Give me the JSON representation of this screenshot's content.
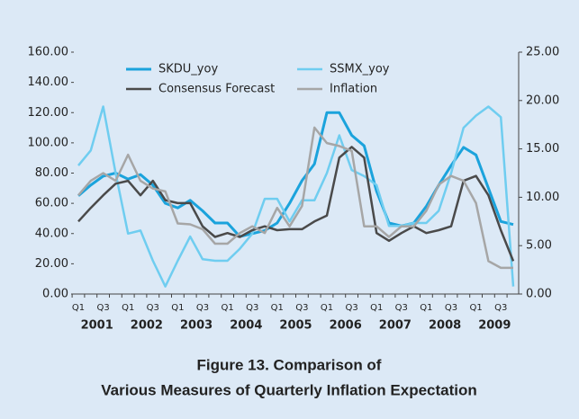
{
  "chart_data": {
    "type": "line",
    "title": [
      "Figure 13. Comparison of",
      "Various Measures of Quarterly Inflation Expectation"
    ],
    "categories": [
      "Q1",
      null,
      "Q3",
      null,
      "Q1",
      null,
      "Q3",
      null,
      "Q1",
      null,
      "Q3",
      null,
      "Q1",
      null,
      "Q3",
      null,
      "Q1",
      null,
      "Q3",
      null,
      "Q1",
      null,
      "Q3",
      null,
      "Q1",
      null,
      "Q3",
      null,
      "Q1",
      null,
      "Q3",
      null,
      "Q1",
      null,
      "Q3",
      null
    ],
    "years": [
      "2001",
      "2002",
      "2003",
      "2004",
      "2005",
      "2006",
      "2007",
      "2008",
      "2009"
    ],
    "ylim": [
      0,
      160
    ],
    "yticks": [
      {
        "value": 0,
        "label": "0.00"
      },
      {
        "value": 20,
        "label": "20.00"
      },
      {
        "value": 40,
        "label": "40.00"
      },
      {
        "value": 60,
        "label": "60.00"
      },
      {
        "value": 80,
        "label": "80.00"
      },
      {
        "value": 100,
        "label": "100.00"
      },
      {
        "value": 120,
        "label": "120.00"
      },
      {
        "value": 140,
        "label": "140.00"
      },
      {
        "value": 160,
        "label": "160.00"
      }
    ],
    "y2lim": [
      0,
      25
    ],
    "y2ticks": [
      {
        "value": 0,
        "label": "0.00"
      },
      {
        "value": 5,
        "label": "5.00"
      },
      {
        "value": 10,
        "label": "10.00"
      },
      {
        "value": 15,
        "label": "15.00"
      },
      {
        "value": 20,
        "label": "20.00"
      },
      {
        "value": 25,
        "label": "25.00"
      }
    ],
    "series": [
      {
        "name": "SKDU_yoy",
        "color": "#1ba3dc",
        "width": 3,
        "values": [
          65,
          72,
          78,
          80,
          76,
          79,
          72,
          60,
          57,
          62,
          55,
          47,
          47,
          38,
          40,
          42,
          47,
          60,
          75,
          86,
          120,
          120,
          105,
          98,
          68,
          47,
          45,
          47,
          58,
          72,
          85,
          97,
          92,
          70,
          48,
          46
        ]
      },
      {
        "name": "SSMX_yoy",
        "color": "#6fcdf0",
        "width": 2.5,
        "values": [
          85,
          95,
          124,
          80,
          40,
          42,
          22,
          5,
          22,
          38,
          23,
          22,
          22,
          30,
          40,
          63,
          63,
          48,
          62,
          62,
          80,
          105,
          82,
          78,
          72,
          45,
          45,
          47,
          47,
          55,
          80,
          110,
          118,
          124,
          117,
          5
        ]
      },
      {
        "name": "Consensus Forecast",
        "color": "#4a4a4a",
        "width": 2.5,
        "axis": "y2",
        "values": [
          7.5,
          8.9,
          10.2,
          11.4,
          11.7,
          10.2,
          11.7,
          9.7,
          9.4,
          9.4,
          7.0,
          5.9,
          6.3,
          5.9,
          6.6,
          7.0,
          6.6,
          6.7,
          6.7,
          7.5,
          8.1,
          14.1,
          15.2,
          14.1,
          6.3,
          5.5,
          6.3,
          7.0,
          6.3,
          6.6,
          7.0,
          11.7,
          12.2,
          10.2,
          6.6,
          3.4
        ]
      },
      {
        "name": "Inflation",
        "color": "#a6a6a6",
        "width": 2.5,
        "axis": "y2",
        "values": [
          10.2,
          11.7,
          12.5,
          11.7,
          14.4,
          11.7,
          10.9,
          10.6,
          7.3,
          7.2,
          6.7,
          5.2,
          5.2,
          6.3,
          7.0,
          6.3,
          8.9,
          7.0,
          9.1,
          17.2,
          15.6,
          15.3,
          14.8,
          7.0,
          7.0,
          5.9,
          7.0,
          7.0,
          8.6,
          11.3,
          12.2,
          11.7,
          9.4,
          3.4,
          2.7,
          2.7
        ]
      }
    ]
  }
}
